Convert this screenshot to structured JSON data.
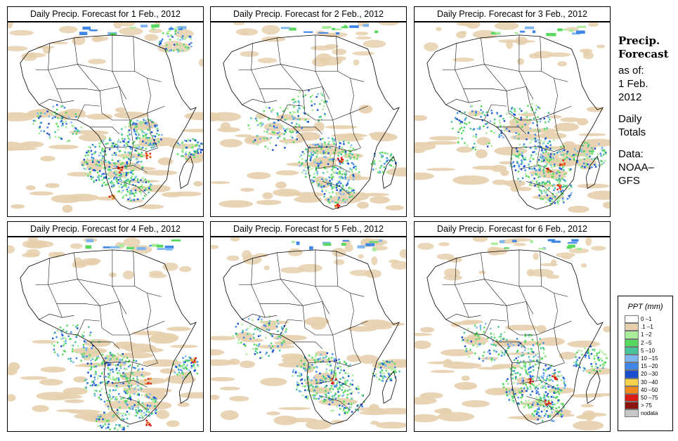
{
  "panels": [
    {
      "title": "Daily Precip. Forecast for  1 Feb., 2012"
    },
    {
      "title": "Daily Precip. Forecast for  2 Feb., 2012"
    },
    {
      "title": "Daily Precip. Forecast for  3 Feb., 2012"
    },
    {
      "title": "Daily Precip. Forecast for  4 Feb., 2012"
    },
    {
      "title": "Daily Precip. Forecast for  5 Feb., 2012"
    },
    {
      "title": "Daily Precip. Forecast for  6 Feb., 2012"
    }
  ],
  "sidebar": {
    "heading_line1": "Precip.",
    "heading_line2": "Forecast",
    "asof_label": "as of:",
    "asof_date_line1": "1 Feb.",
    "asof_date_line2": "2012",
    "totals_line1": "Daily",
    "totals_line2": "Totals",
    "data_label": "Data:",
    "data_source_line1": "NOAA–",
    "data_source_line2": "GFS"
  },
  "legend": {
    "title": "PPT (mm)",
    "items": [
      {
        "label": "0 –1",
        "color": "#ffffff"
      },
      {
        "label": ".1 –1",
        "color": "#e6cfac"
      },
      {
        "label": "1 –2",
        "color": "#a8ec9a"
      },
      {
        "label": "2 –5",
        "color": "#58d85e"
      },
      {
        "label": "5 –10",
        "color": "#48c49a"
      },
      {
        "label": "10 –15",
        "color": "#7fb6f0"
      },
      {
        "label": "15 –20",
        "color": "#3f86e6"
      },
      {
        "label": "20 –30",
        "color": "#1a4fd0"
      },
      {
        "label": "30 –40",
        "color": "#f6d24a"
      },
      {
        "label": "40 –50",
        "color": "#f08a1c"
      },
      {
        "label": "50 –75",
        "color": "#d81e14"
      },
      {
        "label": "> 75",
        "color": "#8a1410"
      },
      {
        "label": "nodata",
        "color": "#c8c8c8"
      }
    ]
  }
}
